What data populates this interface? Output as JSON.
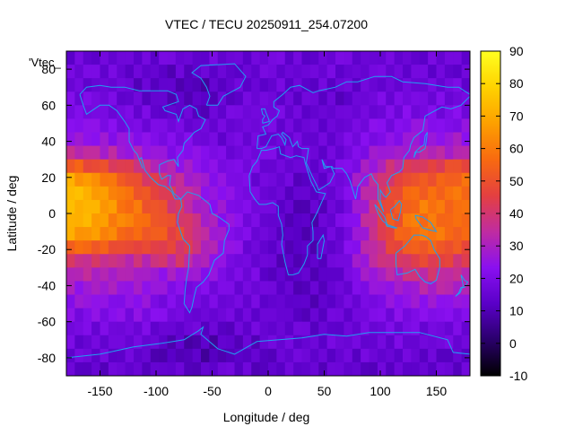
{
  "chart_data": {
    "type": "heatmap",
    "title": "VTEC / TECU 20250911_254.07200",
    "xlabel": "Longitude / deg",
    "ylabel": "Latitude / deg",
    "legend_key": "'Vtec_",
    "xlim": [
      -180,
      180
    ],
    "ylim": [
      -90,
      90
    ],
    "zlim": [
      -10,
      90
    ],
    "xticks": [
      -150,
      -100,
      -50,
      0,
      50,
      100,
      150
    ],
    "yticks": [
      -80,
      -60,
      -40,
      -20,
      0,
      20,
      40,
      60,
      80
    ],
    "colorbar_ticks": [
      -10,
      0,
      10,
      20,
      30,
      40,
      50,
      60,
      70,
      80,
      90
    ],
    "colormap": [
      "#000000",
      "#2a006b",
      "#5a00c8",
      "#8a10f0",
      "#c02ca0",
      "#e44040",
      "#f86a10",
      "#fda000",
      "#ffd200",
      "#ffff20"
    ],
    "grid": false,
    "overlay": "coastlines",
    "coastline_color": "#20a0f0",
    "values_note_lat_bands": {
      "lats": [
        -85,
        -75,
        -65,
        -55,
        -45,
        -35,
        -25,
        -15,
        -5,
        5,
        15,
        25,
        35,
        45,
        55,
        65,
        75,
        85
      ],
      "lons": [
        -175,
        -155,
        -135,
        -115,
        -95,
        -75,
        -55,
        -35,
        -15,
        5,
        25,
        45,
        65,
        85,
        105,
        125,
        145,
        165
      ],
      "values": [
        [
          14,
          14,
          14,
          14,
          14,
          14,
          14,
          14,
          14,
          14,
          14,
          14,
          14,
          14,
          14,
          14,
          14,
          14
        ],
        [
          16,
          16,
          16,
          16,
          10,
          8,
          8,
          10,
          12,
          14,
          16,
          16,
          16,
          16,
          16,
          16,
          16,
          16
        ],
        [
          18,
          18,
          18,
          18,
          16,
          14,
          14,
          14,
          16,
          16,
          16,
          14,
          16,
          18,
          18,
          18,
          18,
          18
        ],
        [
          22,
          22,
          22,
          22,
          20,
          18,
          16,
          16,
          16,
          16,
          14,
          14,
          16,
          18,
          20,
          22,
          22,
          22
        ],
        [
          26,
          26,
          26,
          24,
          22,
          20,
          18,
          18,
          16,
          14,
          12,
          12,
          16,
          20,
          24,
          26,
          28,
          28
        ],
        [
          30,
          30,
          30,
          28,
          26,
          24,
          22,
          20,
          18,
          14,
          12,
          12,
          16,
          24,
          30,
          34,
          36,
          34
        ],
        [
          42,
          40,
          38,
          36,
          38,
          40,
          30,
          22,
          18,
          14,
          12,
          12,
          18,
          28,
          38,
          46,
          48,
          44
        ],
        [
          66,
          62,
          56,
          52,
          50,
          46,
          34,
          24,
          18,
          14,
          12,
          12,
          18,
          30,
          44,
          56,
          60,
          54
        ],
        [
          72,
          68,
          62,
          58,
          52,
          40,
          30,
          24,
          18,
          16,
          12,
          12,
          18,
          30,
          48,
          58,
          60,
          56
        ],
        [
          74,
          70,
          62,
          56,
          48,
          36,
          28,
          22,
          18,
          16,
          12,
          12,
          18,
          30,
          48,
          56,
          60,
          58
        ],
        [
          76,
          70,
          60,
          52,
          42,
          32,
          26,
          22,
          18,
          16,
          14,
          14,
          18,
          30,
          44,
          54,
          56,
          58
        ],
        [
          56,
          52,
          46,
          40,
          34,
          28,
          24,
          20,
          18,
          16,
          14,
          14,
          18,
          26,
          36,
          42,
          46,
          50
        ],
        [
          30,
          30,
          28,
          26,
          24,
          22,
          20,
          18,
          18,
          18,
          16,
          16,
          18,
          22,
          26,
          28,
          30,
          30
        ],
        [
          24,
          24,
          22,
          20,
          20,
          18,
          16,
          16,
          18,
          18,
          16,
          16,
          16,
          20,
          22,
          24,
          24,
          24
        ],
        [
          20,
          20,
          18,
          18,
          16,
          14,
          14,
          16,
          18,
          18,
          16,
          16,
          16,
          18,
          20,
          20,
          20,
          20
        ],
        [
          18,
          18,
          16,
          14,
          12,
          10,
          10,
          14,
          16,
          16,
          14,
          14,
          14,
          16,
          18,
          18,
          18,
          18
        ],
        [
          16,
          16,
          16,
          14,
          12,
          12,
          12,
          14,
          16,
          16,
          16,
          16,
          16,
          16,
          16,
          16,
          16,
          16
        ],
        [
          16,
          16,
          16,
          16,
          16,
          16,
          16,
          16,
          16,
          16,
          16,
          16,
          16,
          16,
          16,
          16,
          16,
          16
        ]
      ]
    }
  }
}
